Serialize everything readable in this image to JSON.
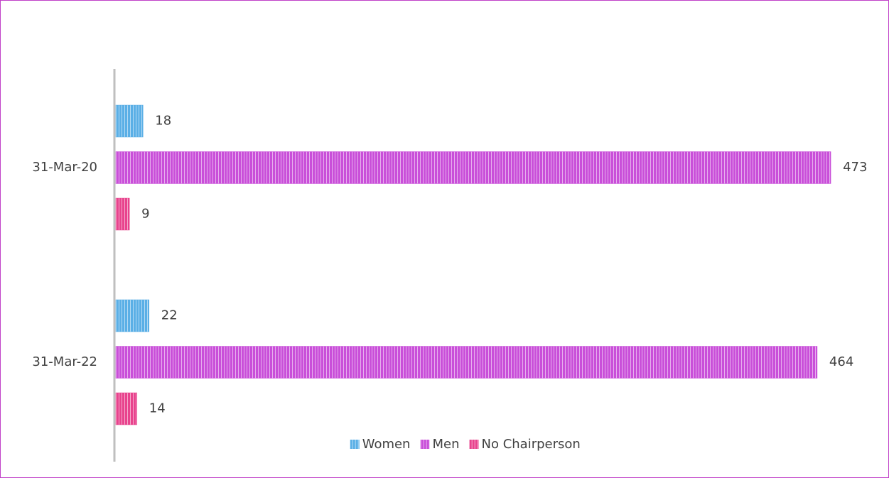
{
  "chart_data": {
    "type": "hbar",
    "categories": [
      "31-Mar-20",
      "31-Mar-22"
    ],
    "series": [
      {
        "name": "Women",
        "color": "#5aafe6",
        "values": [
          18,
          22
        ]
      },
      {
        "name": "Men",
        "color": "#c94fd9",
        "values": [
          473,
          464
        ]
      },
      {
        "name": "No Chairperson",
        "color": "#e8438d",
        "values": [
          9,
          14
        ]
      }
    ],
    "xlim": [
      0,
      500
    ],
    "legend": "bottom",
    "data_labels": true
  }
}
